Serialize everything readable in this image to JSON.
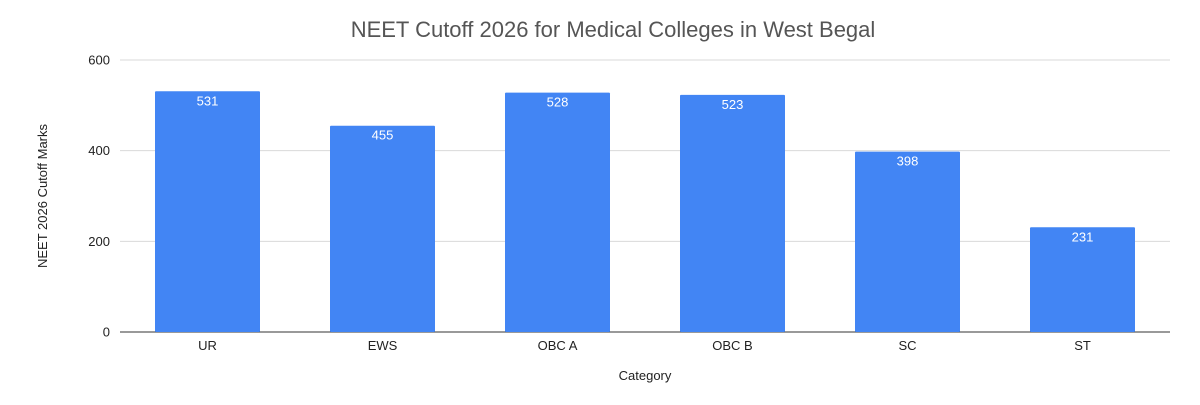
{
  "chart_data": {
    "type": "bar",
    "title": "NEET Cutoff 2026 for Medical Colleges in West Begal",
    "xlabel": "Category",
    "ylabel": "NEET 2026 Cutoff Marks",
    "categories": [
      "UR",
      "EWS",
      "OBC A",
      "OBC B",
      "SC",
      "ST"
    ],
    "values": [
      531,
      455,
      528,
      523,
      398,
      231
    ],
    "data_labels": [
      "531",
      "455",
      "528",
      "523",
      "398",
      "231"
    ],
    "ylim": [
      0,
      600
    ],
    "yticks": [
      0,
      200,
      400,
      600
    ],
    "ytick_labels": [
      "0",
      "200",
      "400",
      "600"
    ],
    "grid": true,
    "legend": "none",
    "colors": {
      "bar": "#4285f4",
      "grid": "#d9d9d9",
      "title": "#555555"
    }
  }
}
